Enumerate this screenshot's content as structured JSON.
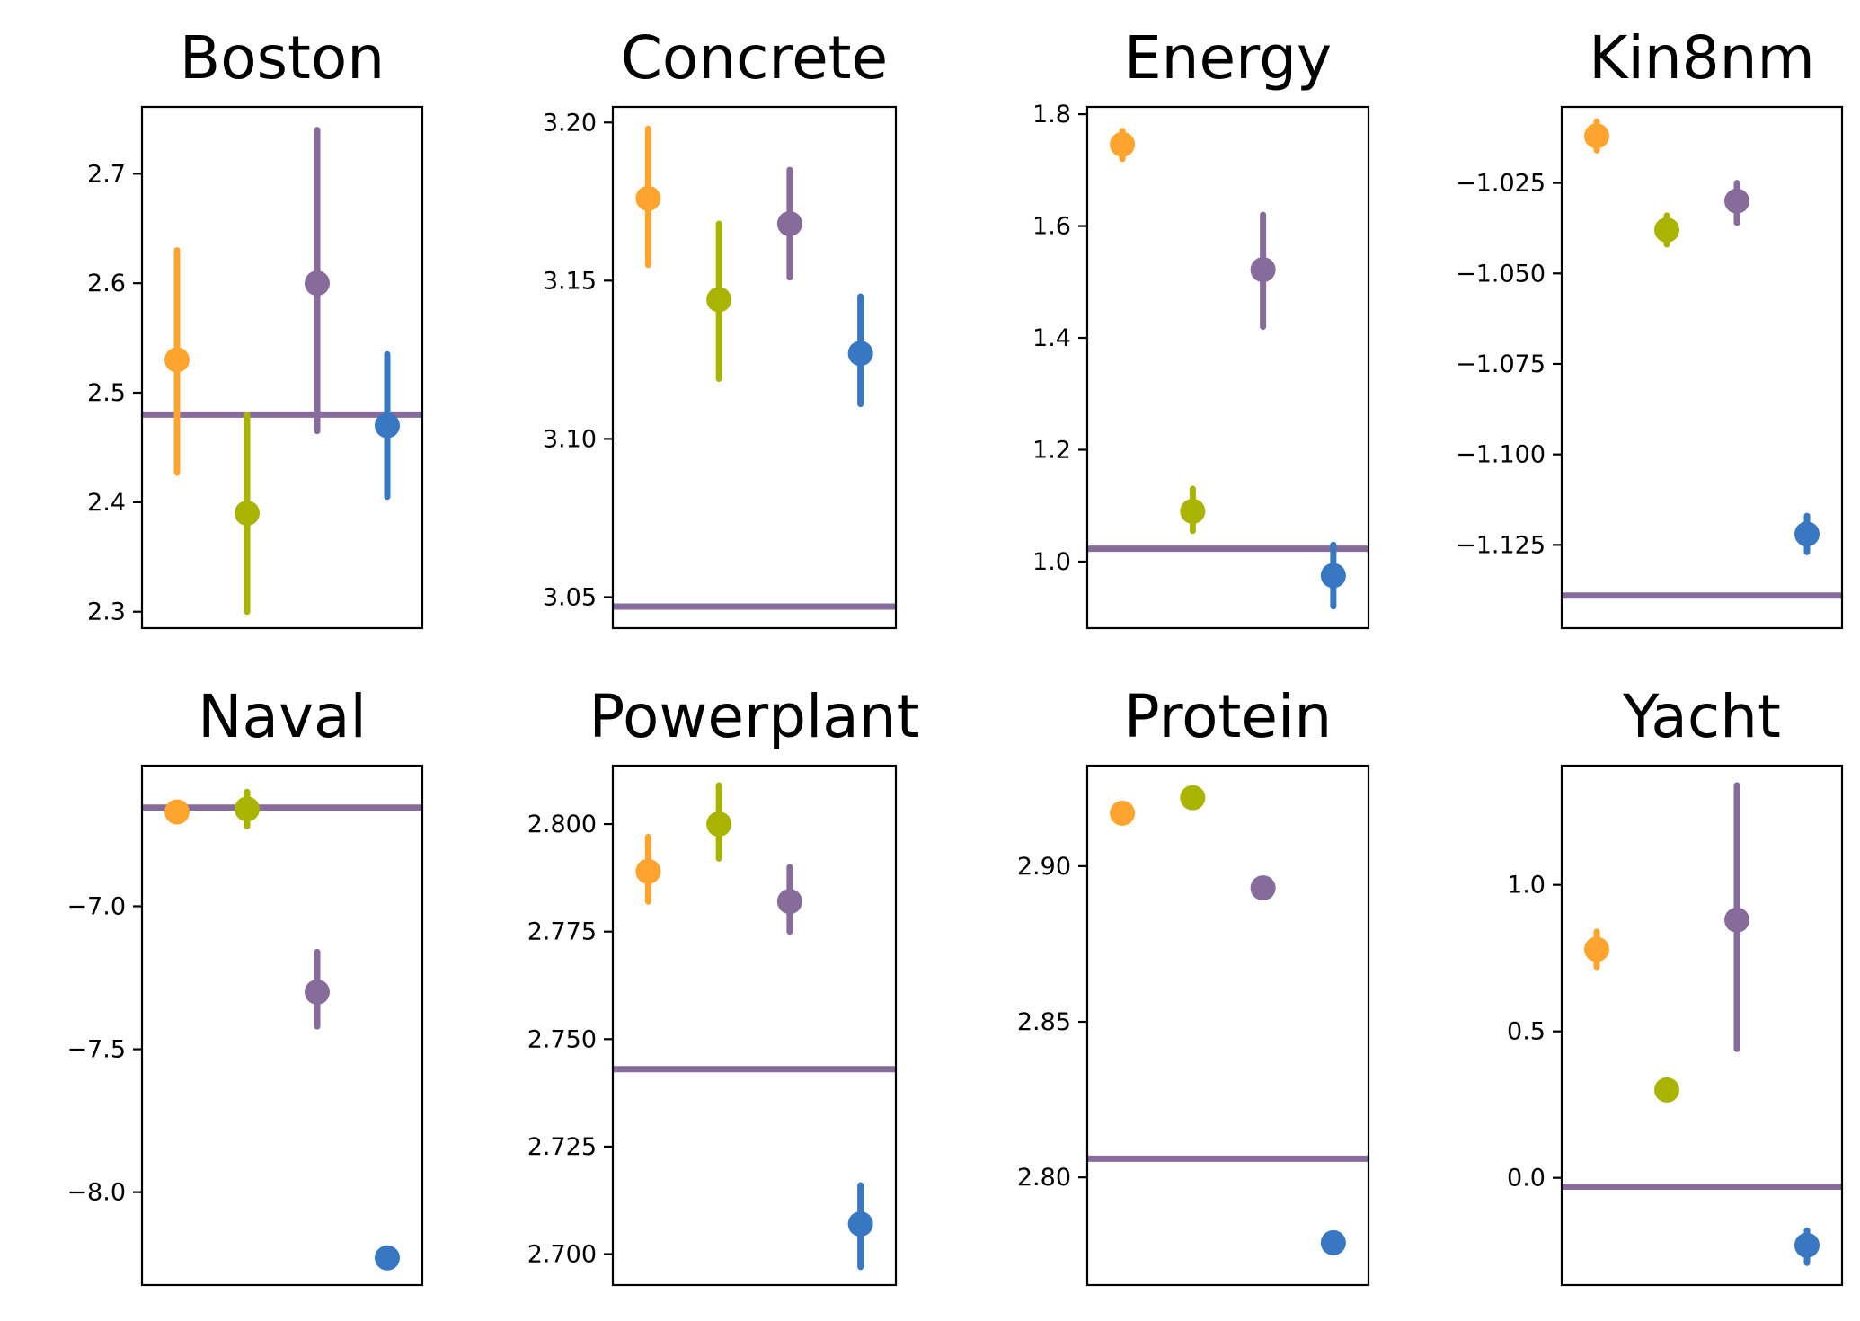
{
  "chart_data": [
    {
      "type": "scatter",
      "title": "Boston",
      "ylim": [
        2.285,
        2.761
      ],
      "yticks": [
        2.3,
        2.4,
        2.5,
        2.6,
        2.7
      ],
      "tick_labels": [
        "2.3",
        "2.4",
        "2.5",
        "2.6",
        "2.7"
      ],
      "hline": 2.48,
      "points": [
        {
          "y": 2.53,
          "lo": 2.427,
          "hi": 2.63
        },
        {
          "y": 2.39,
          "lo": 2.3,
          "hi": 2.48
        },
        {
          "y": 2.6,
          "lo": 2.465,
          "hi": 2.74
        },
        {
          "y": 2.47,
          "lo": 2.405,
          "hi": 2.535
        }
      ]
    },
    {
      "type": "scatter",
      "title": "Concrete",
      "ylim": [
        3.0402,
        3.2049
      ],
      "yticks": [
        3.05,
        3.1,
        3.15,
        3.2
      ],
      "tick_labels": [
        "3.05",
        "3.10",
        "3.15",
        "3.20"
      ],
      "hline": 3.047,
      "points": [
        {
          "y": 3.176,
          "lo": 3.155,
          "hi": 3.198
        },
        {
          "y": 3.144,
          "lo": 3.119,
          "hi": 3.168
        },
        {
          "y": 3.168,
          "lo": 3.151,
          "hi": 3.185
        },
        {
          "y": 3.127,
          "lo": 3.111,
          "hi": 3.145
        }
      ]
    },
    {
      "type": "scatter",
      "title": "Energy",
      "ylim": [
        0.881,
        1.813
      ],
      "yticks": [
        1.0,
        1.2,
        1.4,
        1.6,
        1.8
      ],
      "tick_labels": [
        "1.0",
        "1.2",
        "1.4",
        "1.6",
        "1.8"
      ],
      "hline": 1.023,
      "points": [
        {
          "y": 1.746,
          "lo": 1.72,
          "hi": 1.77
        },
        {
          "y": 1.09,
          "lo": 1.055,
          "hi": 1.13
        },
        {
          "y": 1.522,
          "lo": 1.42,
          "hi": 1.62
        },
        {
          "y": 0.975,
          "lo": 0.92,
          "hi": 1.03
        }
      ]
    },
    {
      "type": "scatter",
      "title": "Kin8nm",
      "ylim": [
        -1.148,
        -1.004
      ],
      "yticks": [
        -1.125,
        -1.1,
        -1.075,
        -1.05,
        -1.025
      ],
      "tick_labels": [
        "−1.125",
        "−1.100",
        "−1.075",
        "−1.050",
        "−1.025"
      ],
      "hline": -1.139,
      "points": [
        {
          "y": -1.012,
          "lo": -1.016,
          "hi": -1.008
        },
        {
          "y": -1.038,
          "lo": -1.042,
          "hi": -1.034
        },
        {
          "y": -1.03,
          "lo": -1.036,
          "hi": -1.025
        },
        {
          "y": -1.122,
          "lo": -1.127,
          "hi": -1.117
        }
      ]
    },
    {
      "type": "scatter",
      "title": "Naval",
      "ylim": [
        -8.325,
        -6.508
      ],
      "yticks": [
        -8.0,
        -7.5,
        -7.0
      ],
      "tick_labels": [
        "−8.0",
        "−7.5",
        "−7.0"
      ],
      "hline": -6.655,
      "points": [
        {
          "y": -6.67,
          "lo": -6.7,
          "hi": -6.64
        },
        {
          "y": -6.66,
          "lo": -6.72,
          "hi": -6.6
        },
        {
          "y": -7.3,
          "lo": -7.42,
          "hi": -7.16
        },
        {
          "y": -8.23,
          "lo": -8.24,
          "hi": -8.22
        }
      ]
    },
    {
      "type": "scatter",
      "title": "Powerplant",
      "ylim": [
        2.6928,
        2.8136
      ],
      "yticks": [
        2.7,
        2.725,
        2.75,
        2.775,
        2.8
      ],
      "tick_labels": [
        "2.700",
        "2.725",
        "2.750",
        "2.775",
        "2.800"
      ],
      "hline": 2.743,
      "points": [
        {
          "y": 2.789,
          "lo": 2.782,
          "hi": 2.797
        },
        {
          "y": 2.8,
          "lo": 2.792,
          "hi": 2.809
        },
        {
          "y": 2.782,
          "lo": 2.775,
          "hi": 2.79
        },
        {
          "y": 2.707,
          "lo": 2.697,
          "hi": 2.716
        }
      ]
    },
    {
      "type": "scatter",
      "title": "Protein",
      "ylim": [
        2.7654,
        2.9323
      ],
      "yticks": [
        2.8,
        2.85,
        2.9
      ],
      "tick_labels": [
        "2.80",
        "2.85",
        "2.90"
      ],
      "hline": 2.806,
      "points": [
        {
          "y": 2.917,
          "lo": 2.916,
          "hi": 2.918
        },
        {
          "y": 2.922,
          "lo": 2.921,
          "hi": 2.923
        },
        {
          "y": 2.893,
          "lo": 2.892,
          "hi": 2.894
        },
        {
          "y": 2.779,
          "lo": 2.776,
          "hi": 2.782
        }
      ]
    },
    {
      "type": "scatter",
      "title": "Yacht",
      "ylim": [
        -0.366,
        1.407
      ],
      "yticks": [
        0.0,
        0.5,
        1.0
      ],
      "tick_labels": [
        "0.0",
        "0.5",
        "1.0"
      ],
      "hline": -0.03,
      "points": [
        {
          "y": 0.78,
          "lo": 0.72,
          "hi": 0.84
        },
        {
          "y": 0.3,
          "lo": 0.27,
          "hi": 0.33
        },
        {
          "y": 0.88,
          "lo": 0.44,
          "hi": 1.34
        },
        {
          "y": -0.23,
          "lo": -0.29,
          "hi": -0.18
        }
      ]
    }
  ],
  "colors": {
    "points": [
      "#ffa42e",
      "#a8b400",
      "#866b9b",
      "#3877c2"
    ],
    "hline": "#866b9b"
  },
  "xlim": [
    -0.5,
    3.5
  ]
}
